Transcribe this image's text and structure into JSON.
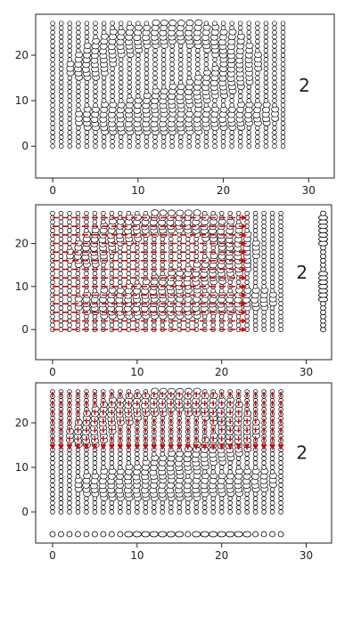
{
  "chart_data": [
    {
      "type": "scatter",
      "panel": "top",
      "xlim": [
        -2,
        33
      ],
      "ylim": [
        -7,
        29
      ],
      "xticks": [
        0,
        10,
        20,
        30
      ],
      "yticks": [
        0,
        10,
        20
      ],
      "grid_points": {
        "x_range": [
          0,
          27
        ],
        "y_range": [
          0,
          27
        ],
        "step": 1
      },
      "digit_label": "2",
      "digit_shape": "2",
      "arrows": "none",
      "marginal_points": "none",
      "colors": {
        "points": "#000000"
      },
      "grid": false
    },
    {
      "type": "scatter",
      "panel": "middle",
      "xlim": [
        -2,
        33
      ],
      "ylim": [
        -7,
        29
      ],
      "xticks": [
        0,
        10,
        20,
        30
      ],
      "yticks": [
        0,
        10,
        20
      ],
      "grid_points": {
        "x_range": [
          0,
          27
        ],
        "y_range": [
          0,
          27
        ],
        "step": 1
      },
      "digit_label": "2",
      "digit_shape": "2",
      "arrows": "horizontal",
      "arrow_extent": {
        "x_range": [
          0,
          23
        ],
        "y_range": [
          0,
          27
        ]
      },
      "marginal_points": "right",
      "marginal_x": 32,
      "colors": {
        "points": "#000000",
        "arrows": "#e00000"
      },
      "grid": false
    },
    {
      "type": "scatter",
      "panel": "bottom",
      "xlim": [
        -2,
        33
      ],
      "ylim": [
        -7,
        29
      ],
      "xticks": [
        0,
        10,
        20,
        30
      ],
      "yticks": [
        0,
        10,
        20
      ],
      "grid_points": {
        "x_range": [
          0,
          27
        ],
        "y_range": [
          0,
          27
        ],
        "step": 1
      },
      "digit_label": "2",
      "digit_shape": "2",
      "arrows": "vertical",
      "arrow_extent": {
        "x_range": [
          0,
          27
        ],
        "y_range": [
          14,
          27
        ]
      },
      "marginal_points": "bottom",
      "marginal_y": -5,
      "colors": {
        "points": "#000000",
        "arrows": "#e00000"
      },
      "grid": false
    }
  ]
}
